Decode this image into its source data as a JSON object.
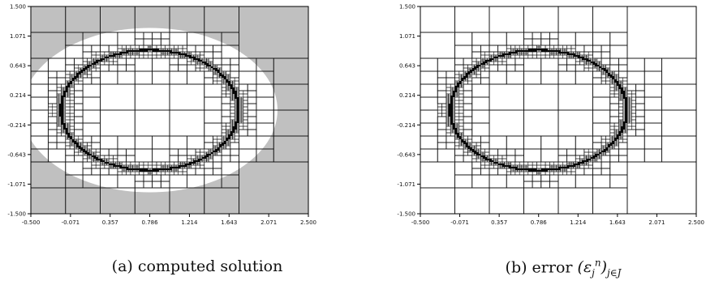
{
  "panels": [
    {
      "id": "a",
      "caption": "(a) computed solution",
      "background_fill": "#c0c0c0",
      "hole_fill": "#ffffff",
      "x_ticks": [
        "-0.500",
        "-0.071",
        "0.357",
        "0.786",
        "1.214",
        "1.643",
        "2.071",
        "2.500"
      ],
      "y_ticks": [
        "1.500",
        "1.071",
        "0.643",
        "0.214",
        "-0.214",
        "-0.643",
        "-1.071",
        "-1.500"
      ],
      "xlim": [
        -0.5,
        2.5
      ],
      "ylim": [
        -1.5,
        1.5
      ]
    },
    {
      "id": "b",
      "caption_label": "(b) error",
      "caption_math": "(ε",
      "caption_sub": "j",
      "caption_sup": "n",
      "caption_close": ")",
      "caption_index": "j∈J",
      "background_fill": "#ffffff",
      "hole_fill": "#ffffff",
      "x_ticks": [
        "-0.500",
        "-0.071",
        "0.357",
        "0.786",
        "1.214",
        "1.643",
        "2.071",
        "2.500"
      ],
      "y_ticks": [
        "1.500",
        "1.071",
        "0.643",
        "0.214",
        "-0.214",
        "-0.643",
        "-1.071",
        "-1.500"
      ],
      "xlim": [
        -0.5,
        2.5
      ],
      "ylim": [
        -1.5,
        1.5
      ]
    }
  ],
  "mesh": {
    "ring_center": [
      0.786,
      0.0
    ],
    "ring_radius_x": 0.96,
    "ring_radius_y": 0.87,
    "colors": {
      "line": "#111111",
      "ring": "#000000"
    }
  }
}
